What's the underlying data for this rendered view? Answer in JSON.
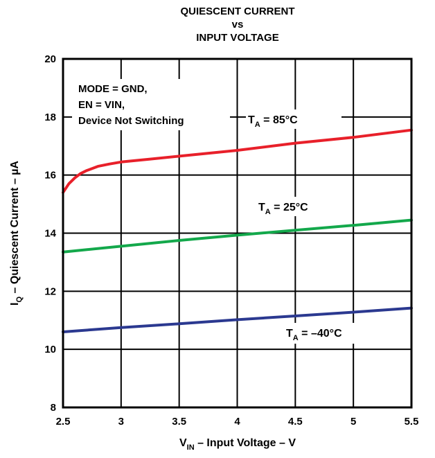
{
  "chart_data": {
    "type": "line",
    "title": [
      "QUIESCENT CURRENT",
      "vs",
      "INPUT VOLTAGE"
    ],
    "xlabel": {
      "main": "V",
      "sub": "IN",
      "rest": " – Input Voltage – V"
    },
    "ylabel": {
      "main": "I",
      "sub": "Q",
      "rest": " – Quiescent Current – µA"
    },
    "xlim": [
      2.5,
      5.5
    ],
    "ylim": [
      8,
      20
    ],
    "x_ticks": [
      "2.5",
      "3",
      "3.5",
      "4",
      "4.5",
      "5",
      "5.5"
    ],
    "y_ticks": [
      "8",
      "10",
      "12",
      "14",
      "16",
      "18",
      "20"
    ],
    "grid": true,
    "annotation": [
      "MODE = GND,",
      "EN = VIN,",
      "Device Not Switching"
    ],
    "series": [
      {
        "name": "TA = 85°C",
        "label_main": "T",
        "label_sub": "A",
        "label_rest": " = 85°C",
        "color": "#e8202a",
        "x": [
          2.5,
          2.55,
          2.6,
          2.65,
          2.7,
          2.8,
          2.9,
          3.0,
          3.25,
          3.5,
          4.0,
          4.5,
          5.0,
          5.5
        ],
        "y": [
          15.4,
          15.7,
          15.9,
          16.05,
          16.15,
          16.3,
          16.38,
          16.45,
          16.55,
          16.65,
          16.85,
          17.1,
          17.3,
          17.55
        ]
      },
      {
        "name": "TA = 25°C",
        "label_main": "T",
        "label_sub": "A",
        "label_rest": " = 25°C",
        "color": "#13a84b",
        "x": [
          2.5,
          3.0,
          3.5,
          4.0,
          4.5,
          5.0,
          5.5
        ],
        "y": [
          13.35,
          13.55,
          13.75,
          13.93,
          14.1,
          14.27,
          14.45
        ]
      },
      {
        "name": "TA = -40°C",
        "label_main": "T",
        "label_sub": "A",
        "label_rest": " = –40°C",
        "color": "#2b3990",
        "x": [
          2.5,
          3.0,
          3.5,
          4.0,
          4.5,
          5.0,
          5.5
        ],
        "y": [
          10.6,
          10.75,
          10.88,
          11.02,
          11.15,
          11.28,
          11.42
        ]
      }
    ]
  }
}
